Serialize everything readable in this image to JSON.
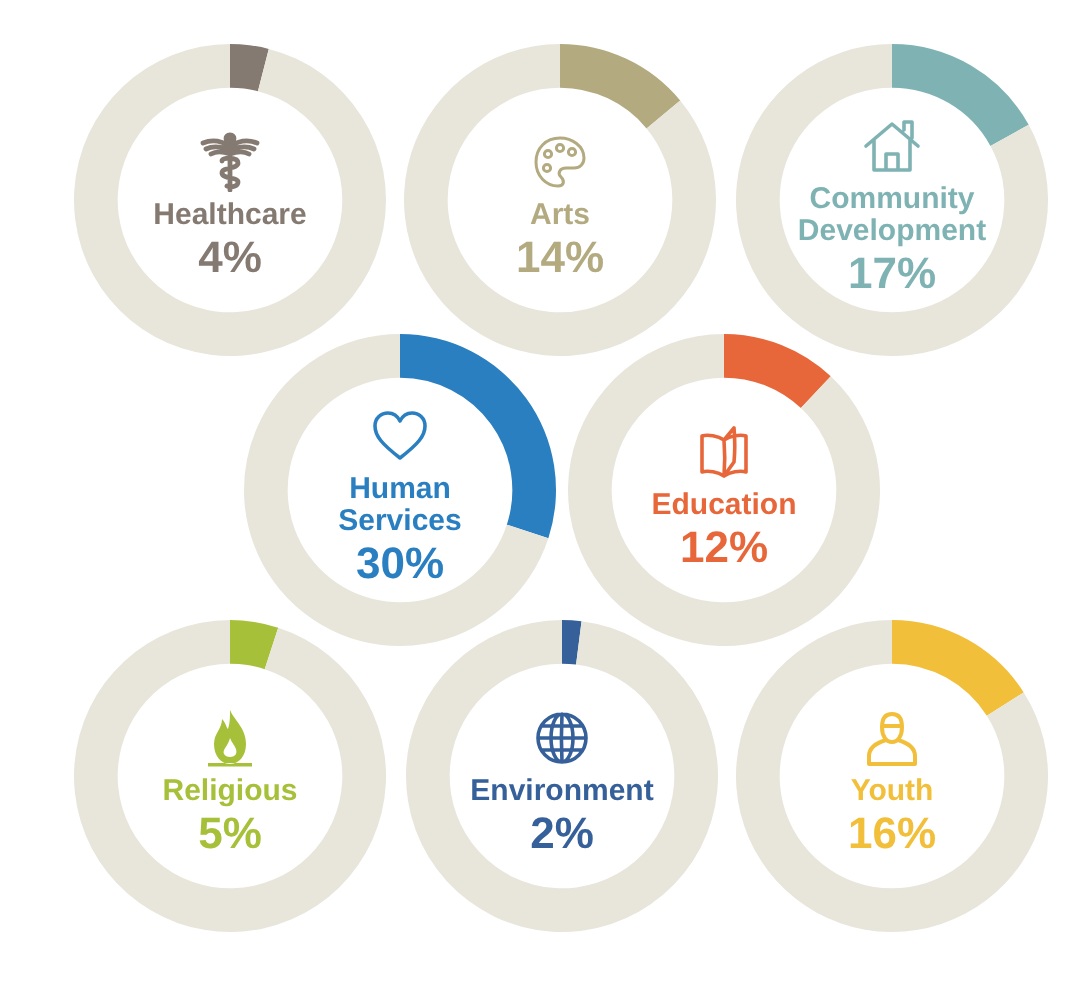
{
  "chart_data": [
    {
      "type": "donut",
      "categories": [
        "Healthcare",
        null
      ],
      "values": [
        4,
        96
      ],
      "colors": [
        "#857a72",
        "#e8e5da"
      ],
      "value_labels": [
        "4%",
        null
      ]
    },
    {
      "type": "donut",
      "categories": [
        "Arts",
        null
      ],
      "values": [
        14,
        86
      ],
      "colors": [
        "#b3aa80",
        "#e8e5da"
      ],
      "value_labels": [
        "14%",
        null
      ]
    },
    {
      "type": "donut",
      "categories": [
        "Community Development",
        null
      ],
      "values": [
        17,
        83
      ],
      "colors": [
        "#7fb3b3",
        "#e8e5da"
      ],
      "value_labels": [
        "17%",
        null
      ]
    },
    {
      "type": "donut",
      "categories": [
        "Human Services",
        null
      ],
      "values": [
        30,
        70
      ],
      "colors": [
        "#2a7fc1",
        "#e8e5da"
      ],
      "value_labels": [
        "30%",
        null
      ]
    },
    {
      "type": "donut",
      "categories": [
        "Education",
        null
      ],
      "values": [
        12,
        88
      ],
      "colors": [
        "#e8673a",
        "#e8e5da"
      ],
      "value_labels": [
        "12%",
        null
      ]
    },
    {
      "type": "donut",
      "categories": [
        "Religious",
        null
      ],
      "values": [
        5,
        95
      ],
      "colors": [
        "#a7c03a",
        "#e8e5da"
      ],
      "value_labels": [
        "5%",
        null
      ]
    },
    {
      "type": "donut",
      "categories": [
        "Environment",
        null
      ],
      "values": [
        2,
        98
      ],
      "colors": [
        "#36609a",
        "#e8e5da"
      ],
      "value_labels": [
        "2%",
        null
      ]
    },
    {
      "type": "donut",
      "categories": [
        "Youth",
        null
      ],
      "values": [
        16,
        84
      ],
      "colors": [
        "#f2bf3a",
        "#e8e5da"
      ],
      "value_labels": [
        "16%",
        null
      ]
    }
  ]
}
